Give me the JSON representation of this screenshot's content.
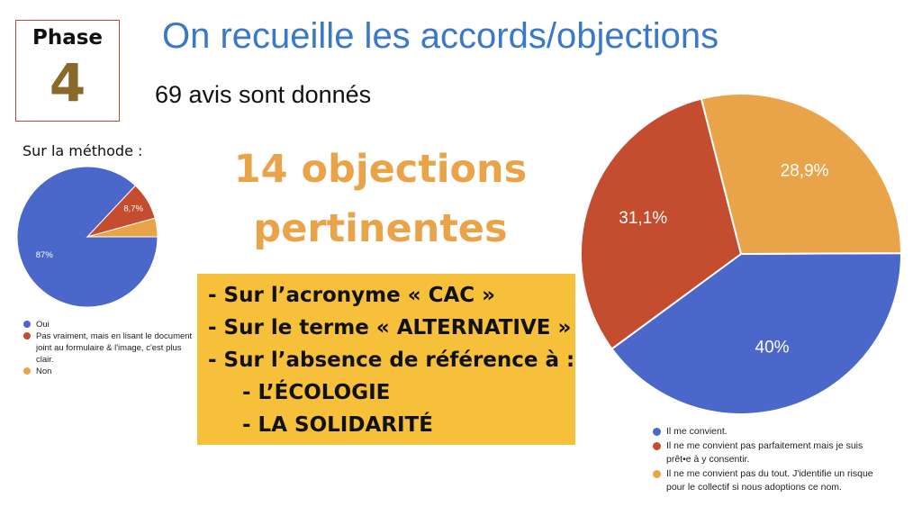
{
  "phase": {
    "label": "Phase",
    "number": "4"
  },
  "title": "On recueille les accords/objections",
  "subtitle": "69 avis sont donnés",
  "objections_headline": [
    "14 objections",
    "pertinentes"
  ],
  "objection_list": [
    "- Sur l’acronyme « CAC »",
    "- Sur le terme « ALTERNATIVE »",
    "- Sur l’absence de référence à :",
    "- L’ÉCOLOGIE",
    "- LA SOLIDARITÉ"
  ],
  "colors": {
    "blue": "#4a67c9",
    "red": "#c44c2f",
    "orange": "#e9a44a",
    "title_blue": "#3a78c9"
  },
  "chart_data": [
    {
      "type": "pie",
      "title": "Sur la méthode :",
      "series": [
        {
          "values": [
            87,
            8.7,
            4.3
          ],
          "labels": [
            "87%",
            "8,7%",
            ""
          ],
          "categories": [
            "Oui",
            "Pas vraiment, mais en lisant le document joint au formulaire & l'image, c'est plus clair.",
            "Non"
          ],
          "colors": [
            "#4a67c9",
            "#c44c2f",
            "#e9a44a"
          ]
        }
      ],
      "legend_position": "bottom"
    },
    {
      "type": "pie",
      "title": "",
      "series": [
        {
          "values": [
            40,
            31.1,
            28.9
          ],
          "labels": [
            "40%",
            "31,1%",
            "28,9%"
          ],
          "categories": [
            "Il me convient.",
            "Il ne me convient pas parfaitement mais je suis prêt•e à y consentir.",
            "Il ne me convient pas du tout. J'identifie un risque pour le collectif si nous adoptions ce nom."
          ],
          "colors": [
            "#4a67c9",
            "#c44c2f",
            "#e9a44a"
          ]
        }
      ],
      "legend_position": "bottom"
    }
  ]
}
